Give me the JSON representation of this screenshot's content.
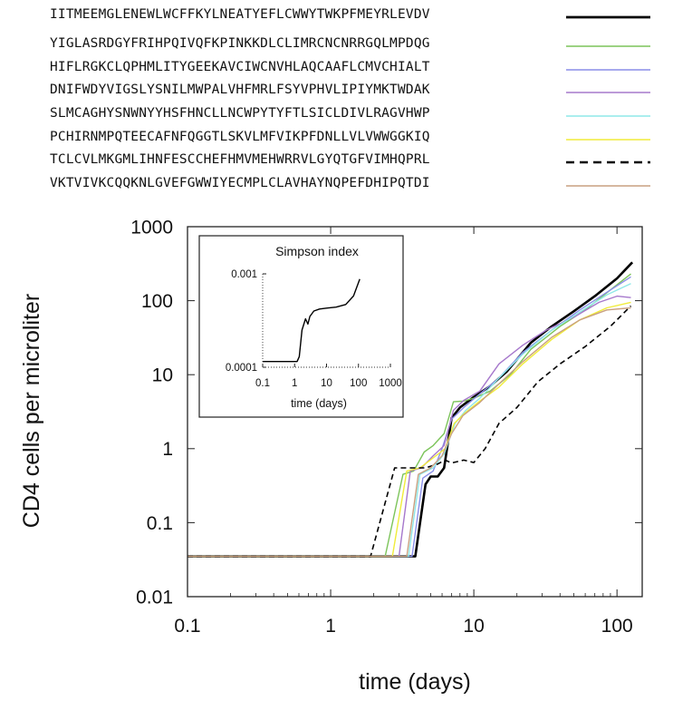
{
  "legend": {
    "entries": [
      {
        "sequence": "IITMEEMGLENEWLWCFFKYLNEATYEFLCWWYTWKPFMEYRLEVDV",
        "color": "#000000",
        "style": "solid-thick"
      },
      {
        "sequence": "YIGLASRDGYFRIHPQIVQFKPINKKDLCLIMRCNCNRRGQLMPDQG",
        "color": "#7cc45a",
        "style": "solid"
      },
      {
        "sequence": "HIFLRGKCLQPHMLITYGEEKAVCIWCNVHLAQCAAFLCMVCHIALT",
        "color": "#8a8ee8",
        "style": "solid"
      },
      {
        "sequence": "DNIFWDYVIGSLYSNILMWPALVHFMRLFSYVPHVLIPIYMKTWDAK",
        "color": "#a678cc",
        "style": "solid"
      },
      {
        "sequence": "SLMCAGHYSNWNYYHSFHNCLLNCWPYTYFTLSICLDIVLRAGVHWP",
        "color": "#8fe8e8",
        "style": "solid"
      },
      {
        "sequence": "PCHIRNMPQTEECAFNFQGGTLSKVLMFVIKPFDNLLVLVWWGGKIQ",
        "color": "#f0ec3a",
        "style": "solid"
      },
      {
        "sequence": "TCLCVLMKGMLIHNFESCCHEFHMVMEHWRRVLGYQTGFVIMHQPRL",
        "color": "#000000",
        "style": "dashed"
      },
      {
        "sequence": "VKTVIVKCQQKNLGVEFGWWIYECMPLCLAVHAYNQPEFDHIPQTDI",
        "color": "#c9a080",
        "style": "solid"
      }
    ]
  },
  "chart_data": [
    {
      "type": "line",
      "title": "",
      "xlabel": "time (days)",
      "ylabel": "CD4 cells per microliter",
      "xscale": "log",
      "yscale": "log",
      "xlim": [
        0.1,
        150
      ],
      "ylim": [
        0.01,
        1000
      ],
      "xticks": [
        {
          "v": 0.1,
          "label": "0.1"
        },
        {
          "v": 1,
          "label": "1"
        },
        {
          "v": 10,
          "label": "10"
        },
        {
          "v": 100,
          "label": "100"
        }
      ],
      "yticks": [
        {
          "v": 0.01,
          "label": "0.01"
        },
        {
          "v": 0.1,
          "label": "0.1"
        },
        {
          "v": 1,
          "label": "1"
        },
        {
          "v": 10,
          "label": "10"
        },
        {
          "v": 100,
          "label": "100"
        },
        {
          "v": 1000,
          "label": "1000"
        }
      ],
      "grid": false,
      "series": [
        {
          "color": "#000000",
          "dash": "",
          "width": 2.6,
          "points": [
            [
              0.1,
              0.035
            ],
            [
              3.9,
              0.035
            ],
            [
              4.6,
              0.33
            ],
            [
              5.0,
              0.42
            ],
            [
              5.6,
              0.42
            ],
            [
              6.2,
              0.55
            ],
            [
              7.0,
              2.6
            ],
            [
              8.0,
              3.6
            ],
            [
              10,
              5
            ],
            [
              13,
              7
            ],
            [
              17,
              11
            ],
            [
              25,
              27
            ],
            [
              35,
              45
            ],
            [
              50,
              72
            ],
            [
              70,
              115
            ],
            [
              100,
              200
            ],
            [
              128,
              330
            ]
          ]
        },
        {
          "color": "#7cc45a",
          "dash": "",
          "width": 1.4,
          "points": [
            [
              0.1,
              0.035
            ],
            [
              2.4,
              0.035
            ],
            [
              3.2,
              0.45
            ],
            [
              3.8,
              0.5
            ],
            [
              4.5,
              0.9
            ],
            [
              5.2,
              1.1
            ],
            [
              6.2,
              1.6
            ],
            [
              7.2,
              4.3
            ],
            [
              8.5,
              4.4
            ],
            [
              10,
              4.8
            ],
            [
              13,
              6
            ],
            [
              18,
              10
            ],
            [
              25,
              22
            ],
            [
              40,
              45
            ],
            [
              60,
              75
            ],
            [
              90,
              140
            ],
            [
              125,
              230
            ]
          ]
        },
        {
          "color": "#8a8ee8",
          "dash": "",
          "width": 1.4,
          "points": [
            [
              0.1,
              0.035
            ],
            [
              3.7,
              0.035
            ],
            [
              4.4,
              0.4
            ],
            [
              5.2,
              0.5
            ],
            [
              6.0,
              1.0
            ],
            [
              7.0,
              2.5
            ],
            [
              8.5,
              3.6
            ],
            [
              11,
              5.5
            ],
            [
              15,
              9
            ],
            [
              22,
              20
            ],
            [
              35,
              40
            ],
            [
              55,
              75
            ],
            [
              85,
              130
            ],
            [
              125,
              210
            ]
          ]
        },
        {
          "color": "#a678cc",
          "dash": "",
          "width": 1.4,
          "points": [
            [
              0.1,
              0.035
            ],
            [
              3.0,
              0.035
            ],
            [
              3.6,
              0.5
            ],
            [
              4.3,
              0.55
            ],
            [
              5.2,
              0.8
            ],
            [
              6.2,
              1.1
            ],
            [
              7.2,
              3.3
            ],
            [
              8.5,
              4.5
            ],
            [
              11,
              6
            ],
            [
              15,
              14
            ],
            [
              22,
              25
            ],
            [
              32,
              40
            ],
            [
              50,
              60
            ],
            [
              75,
              95
            ],
            [
              100,
              115
            ],
            [
              125,
              110
            ]
          ]
        },
        {
          "color": "#8fe8e8",
          "dash": "",
          "width": 1.4,
          "points": [
            [
              0.1,
              0.035
            ],
            [
              3.5,
              0.035
            ],
            [
              4.2,
              0.45
            ],
            [
              5.2,
              0.55
            ],
            [
              6.2,
              0.85
            ],
            [
              7.4,
              2.2
            ],
            [
              8.8,
              3.3
            ],
            [
              11,
              4.8
            ],
            [
              15,
              9
            ],
            [
              22,
              19
            ],
            [
              35,
              40
            ],
            [
              55,
              70
            ],
            [
              85,
              120
            ],
            [
              125,
              170
            ]
          ]
        },
        {
          "color": "#f0ec3a",
          "dash": "",
          "width": 1.4,
          "points": [
            [
              0.1,
              0.035
            ],
            [
              2.7,
              0.035
            ],
            [
              3.4,
              0.5
            ],
            [
              4.2,
              0.55
            ],
            [
              5.2,
              0.75
            ],
            [
              6.3,
              1.0
            ],
            [
              7.3,
              2.2
            ],
            [
              8.6,
              3.0
            ],
            [
              11,
              4.4
            ],
            [
              15,
              6.8
            ],
            [
              22,
              14
            ],
            [
              35,
              30
            ],
            [
              55,
              55
            ],
            [
              85,
              80
            ],
            [
              125,
              95
            ]
          ]
        },
        {
          "color": "#000000",
          "dash": "6 4",
          "width": 1.6,
          "points": [
            [
              0.1,
              0.035
            ],
            [
              1.9,
              0.035
            ],
            [
              2.8,
              0.55
            ],
            [
              3.6,
              0.55
            ],
            [
              4.6,
              0.55
            ],
            [
              5.6,
              0.62
            ],
            [
              6.3,
              0.7
            ],
            [
              7.0,
              0.64
            ],
            [
              8.5,
              0.7
            ],
            [
              10,
              0.65
            ],
            [
              12,
              1.0
            ],
            [
              15,
              2.2
            ],
            [
              20,
              3.6
            ],
            [
              28,
              8
            ],
            [
              40,
              14
            ],
            [
              60,
              24
            ],
            [
              90,
              45
            ],
            [
              125,
              85
            ]
          ]
        },
        {
          "color": "#c9a080",
          "dash": "",
          "width": 1.4,
          "points": [
            [
              0.1,
              0.035
            ],
            [
              3.4,
              0.035
            ],
            [
              4.1,
              0.45
            ],
            [
              5.0,
              0.55
            ],
            [
              6.0,
              0.8
            ],
            [
              7.0,
              1.6
            ],
            [
              8.4,
              2.8
            ],
            [
              11,
              4.2
            ],
            [
              15,
              7.5
            ],
            [
              22,
              15
            ],
            [
              35,
              32
            ],
            [
              55,
              55
            ],
            [
              85,
              75
            ],
            [
              125,
              80
            ]
          ]
        }
      ]
    },
    {
      "type": "line",
      "title": "Simpson index",
      "xlabel": "time (days)",
      "ylabel": "",
      "xscale": "log",
      "yscale": "log",
      "xlim": [
        0.1,
        1000
      ],
      "ylim": [
        0.0001,
        0.001
      ],
      "xticks": [
        {
          "v": 0.1,
          "label": "0.1"
        },
        {
          "v": 1,
          "label": "1"
        },
        {
          "v": 10,
          "label": "10"
        },
        {
          "v": 100,
          "label": "100"
        },
        {
          "v": 1000,
          "label": "1000"
        }
      ],
      "yticks": [
        {
          "v": 0.0001,
          "label": "0.0001"
        },
        {
          "v": 0.001,
          "label": "0.001"
        }
      ],
      "grid": false,
      "series": [
        {
          "color": "#000000",
          "dash": "",
          "width": 1.4,
          "points": [
            [
              0.1,
              0.000115
            ],
            [
              1.2,
              0.000115
            ],
            [
              1.4,
              0.00013
            ],
            [
              1.7,
              0.00025
            ],
            [
              2.2,
              0.00033
            ],
            [
              2.6,
              0.00029
            ],
            [
              3.0,
              0.00035
            ],
            [
              4.0,
              0.0004
            ],
            [
              6.0,
              0.00042
            ],
            [
              10,
              0.00043
            ],
            [
              20,
              0.00044
            ],
            [
              40,
              0.00047
            ],
            [
              70,
              0.00058
            ],
            [
              110,
              0.00088
            ]
          ]
        }
      ]
    }
  ]
}
